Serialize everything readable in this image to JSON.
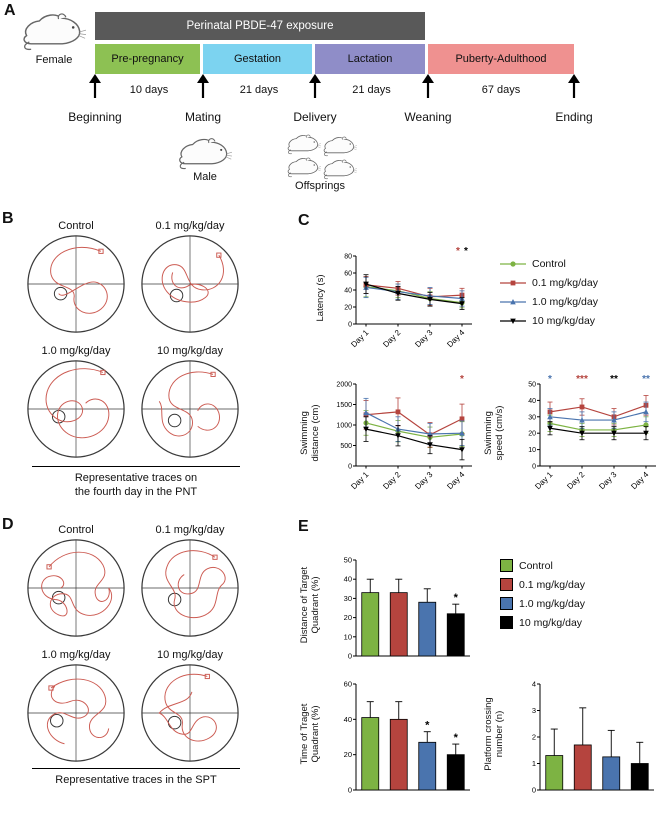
{
  "groups": [
    {
      "label": "Control",
      "color": "#7db343",
      "marker": "circle"
    },
    {
      "label": "0.1 mg/kg/day",
      "color": "#b5443e",
      "marker": "square"
    },
    {
      "label": "1.0 mg/kg/day",
      "color": "#4a74ae",
      "marker": "triangle"
    },
    {
      "label": "10 mg/kg/day",
      "color": "#000000",
      "marker": "triangle-down"
    }
  ],
  "panel_a": {
    "label": "A",
    "female_label": "Female",
    "male_label": "Male",
    "offsprings_label": "Offsprings",
    "exposure_label": "Perinatal PBDE-47 exposure",
    "exposure_color": "#595959",
    "phases": [
      {
        "label": "Pre-pregnancy",
        "duration": "10 days",
        "color": "#8dc153"
      },
      {
        "label": "Gestation",
        "duration": "21 days",
        "color": "#7cd3f0"
      },
      {
        "label": "Lactation",
        "duration": "21 days",
        "color": "#8f8dc8"
      },
      {
        "label": "Puberty-Adulthood",
        "duration": "67 days",
        "color": "#ef9190"
      }
    ],
    "milestones": [
      "Beginning",
      "Mating",
      "Delivery",
      "Weaning",
      "Ending"
    ]
  },
  "panel_b": {
    "label": "B",
    "groups": [
      "Control",
      "0.1 mg/kg/day",
      "1.0 mg/kg/day",
      "10 mg/kg/day"
    ],
    "caption": "Representative traces on\nthe fourth day in the PNT"
  },
  "panel_c": {
    "label": "C"
  },
  "panel_d": {
    "label": "D",
    "groups": [
      "Control",
      "0.1 mg/kg/day",
      "1.0 mg/kg/day",
      "10 mg/kg/day"
    ],
    "caption": "Representative traces in the SPT"
  },
  "panel_e": {
    "label": "E"
  },
  "chart_data": [
    {
      "id": "latency",
      "type": "line",
      "ylabel": "Latency (s)",
      "categories": [
        "Day 1",
        "Day 2",
        "Day 3",
        "Day 4"
      ],
      "ylim": [
        0,
        80
      ],
      "yticks": [
        0,
        20,
        40,
        60,
        80
      ],
      "series": [
        {
          "name": "Control",
          "color": "#7db343",
          "marker": "circle",
          "values": [
            44,
            39,
            30,
            25
          ],
          "errors": [
            12,
            8,
            8,
            6
          ]
        },
        {
          "name": "0.1 mg/kg/day",
          "color": "#b5443e",
          "marker": "square",
          "values": [
            46,
            42,
            32,
            34
          ],
          "errors": [
            10,
            8,
            10,
            8
          ]
        },
        {
          "name": "1.0 mg/kg/day",
          "color": "#4a74ae",
          "marker": "triangle",
          "values": [
            43,
            38,
            33,
            30
          ],
          "errors": [
            12,
            9,
            10,
            9
          ]
        },
        {
          "name": "10 mg/kg/day",
          "color": "#000000",
          "marker": "triangle-down",
          "values": [
            47,
            36,
            29,
            24
          ],
          "errors": [
            11,
            8,
            8,
            7
          ]
        }
      ],
      "annotations": [
        {
          "x": 3,
          "text": "*",
          "color": "#b5443e",
          "dx": -4
        },
        {
          "x": 3,
          "text": "*",
          "color": "#000000",
          "dx": 4
        }
      ]
    },
    {
      "id": "distance",
      "type": "line",
      "ylabel": "Swimming\ndistance (cm)",
      "categories": [
        "Day 1",
        "Day 2",
        "Day 3",
        "Day 4"
      ],
      "ylim": [
        0,
        2000
      ],
      "yticks": [
        0,
        500,
        1000,
        1500,
        2000
      ],
      "series": [
        {
          "name": "Control",
          "color": "#7db343",
          "marker": "circle",
          "values": [
            1050,
            850,
            700,
            780
          ],
          "errors": [
            300,
            260,
            250,
            300
          ]
        },
        {
          "name": "0.1 mg/kg/day",
          "color": "#b5443e",
          "marker": "square",
          "values": [
            1250,
            1320,
            760,
            1150
          ],
          "errors": [
            350,
            340,
            300,
            360
          ]
        },
        {
          "name": "1.0 mg/kg/day",
          "color": "#4a74ae",
          "marker": "triangle",
          "values": [
            1300,
            900,
            780,
            800
          ],
          "errors": [
            350,
            300,
            260,
            300
          ]
        },
        {
          "name": "10 mg/kg/day",
          "color": "#000000",
          "marker": "triangle-down",
          "values": [
            900,
            740,
            520,
            400
          ],
          "errors": [
            300,
            250,
            220,
            250
          ]
        }
      ],
      "annotations": [
        {
          "x": 3,
          "text": "*",
          "color": "#b5443e",
          "dx": 0
        }
      ]
    },
    {
      "id": "speed",
      "type": "line",
      "ylabel": "Swimming\nspeed (cm/s)",
      "categories": [
        "Day 1",
        "Day 2",
        "Day 3",
        "Day 4"
      ],
      "ylim": [
        0,
        50
      ],
      "yticks": [
        0,
        10,
        20,
        30,
        40,
        50
      ],
      "series": [
        {
          "name": "Control",
          "color": "#7db343",
          "marker": "circle",
          "values": [
            26,
            22,
            22,
            25
          ],
          "errors": [
            5,
            4,
            4,
            5
          ]
        },
        {
          "name": "0.1 mg/kg/day",
          "color": "#b5443e",
          "marker": "square",
          "values": [
            33,
            36,
            30,
            37
          ],
          "errors": [
            6,
            5,
            5,
            6
          ]
        },
        {
          "name": "1.0 mg/kg/day",
          "color": "#4a74ae",
          "marker": "triangle",
          "values": [
            30,
            28,
            28,
            33
          ],
          "errors": [
            5,
            5,
            5,
            6
          ]
        },
        {
          "name": "10 mg/kg/day",
          "color": "#000000",
          "marker": "triangle-down",
          "values": [
            23,
            20,
            20,
            20
          ],
          "errors": [
            4,
            4,
            4,
            4
          ]
        }
      ],
      "annotations": [
        {
          "x": 0,
          "text": "*",
          "color": "#4a74ae",
          "dx": 0
        },
        {
          "x": 1,
          "text": "***",
          "color": "#b5443e",
          "dx": 0
        },
        {
          "x": 2,
          "text": "**",
          "color": "#000000",
          "dx": 0
        },
        {
          "x": 3,
          "text": "**",
          "color": "#4a74ae",
          "dx": 0
        }
      ]
    },
    {
      "id": "quad-distance",
      "type": "bar",
      "ylabel": "Distance of Target\nQuadrant (%)",
      "categories": [
        "Control",
        "0.1 mg/kg/day",
        "1.0 mg/kg/day",
        "10 mg/kg/day"
      ],
      "values": [
        33,
        33,
        28,
        22
      ],
      "errors": [
        7,
        7,
        7,
        5
      ],
      "ylim": [
        0,
        50
      ],
      "yticks": [
        0,
        10,
        20,
        30,
        40,
        50
      ],
      "sig": [
        "",
        "",
        "",
        "*"
      ]
    },
    {
      "id": "quad-time",
      "type": "bar",
      "ylabel": "Time of Traget\nQuadrant (%)",
      "categories": [
        "Control",
        "0.1 mg/kg/day",
        "1.0 mg/kg/day",
        "10 mg/kg/day"
      ],
      "values": [
        41,
        40,
        27,
        20
      ],
      "errors": [
        9,
        10,
        6,
        6
      ],
      "ylim": [
        0,
        60
      ],
      "yticks": [
        0,
        20,
        40,
        60
      ],
      "sig": [
        "",
        "",
        "*",
        "*"
      ]
    },
    {
      "id": "crossings",
      "type": "bar",
      "ylabel": "Platform crossing\nnumber (n)",
      "categories": [
        "Control",
        "0.1 mg/kg/day",
        "1.0 mg/kg/day",
        "10 mg/kg/day"
      ],
      "values": [
        1.3,
        1.7,
        1.25,
        1.0
      ],
      "errors": [
        1.0,
        1.4,
        1.0,
        0.8
      ],
      "ylim": [
        0,
        4
      ],
      "yticks": [
        0,
        1,
        2,
        3,
        4
      ],
      "sig": [
        "",
        "",
        "",
        ""
      ]
    }
  ]
}
